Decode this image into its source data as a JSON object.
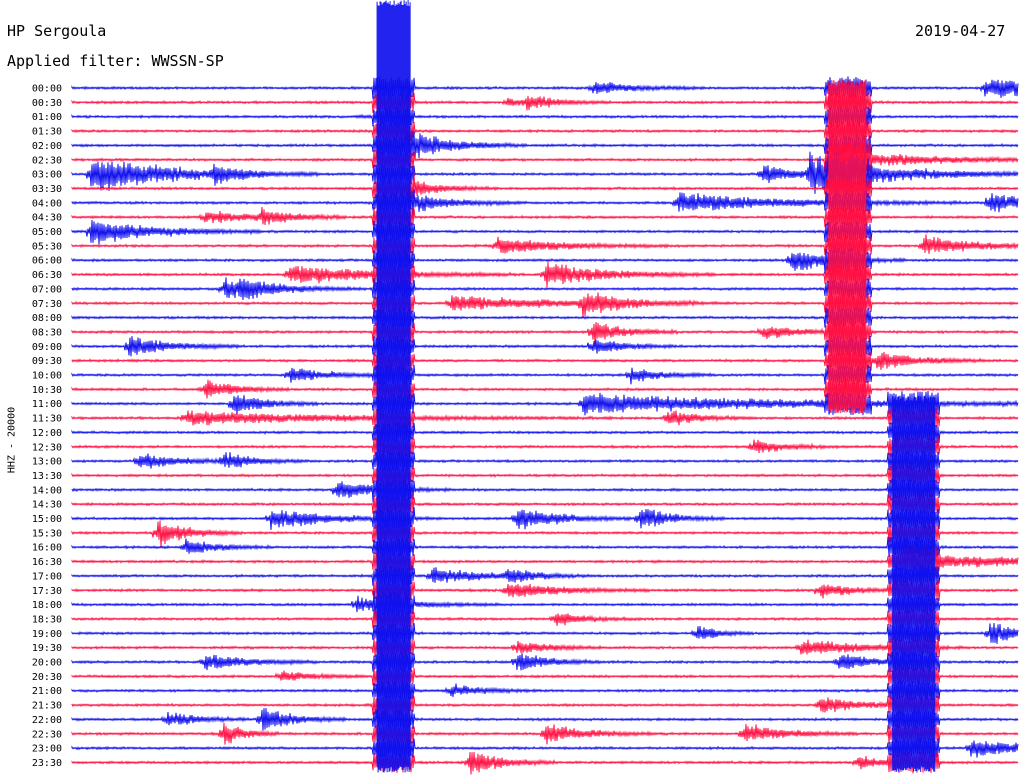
{
  "header": {
    "station": "HP Sergoula",
    "filter": "Applied filter: WWSSN-SP",
    "date": "2019-04-27"
  },
  "channel_label": "HHZ - 20000",
  "colors": {
    "even": "#1010ee",
    "odd": "#ff1144"
  },
  "chart_data": {
    "type": "line",
    "title": "HP Sergoula",
    "subtitle": "Applied filter: WWSSN-SP",
    "date": "2019-04-27",
    "ylabel": "HHZ - 20000",
    "xlabel": "",
    "ytick_labels": [
      "00:00",
      "00:30",
      "01:00",
      "01:30",
      "02:00",
      "02:30",
      "03:00",
      "03:30",
      "04:00",
      "04:30",
      "05:00",
      "05:30",
      "06:00",
      "06:30",
      "07:00",
      "07:30",
      "08:00",
      "08:30",
      "09:00",
      "09:30",
      "10:00",
      "10:30",
      "11:00",
      "11:30",
      "12:00",
      "12:30",
      "13:00",
      "13:30",
      "14:00",
      "14:30",
      "15:00",
      "15:30",
      "16:00",
      "16:30",
      "17:00",
      "17:30",
      "18:00",
      "18:30",
      "19:00",
      "19:30",
      "20:00",
      "20:30",
      "21:00",
      "21:30",
      "22:00",
      "22:30",
      "23:00",
      "23:30"
    ],
    "line_minutes": 30,
    "series_colors": [
      "blue",
      "red"
    ],
    "events": [
      {
        "line": 0,
        "t": 0.965,
        "amp": 12,
        "dur": 0.1,
        "decay": 0.3
      },
      {
        "line": 2,
        "t": 0.3,
        "amp": 0.9,
        "dur": 0.02
      },
      {
        "line": 0,
        "t": 0.55,
        "amp": 8,
        "dur": 0.04
      },
      {
        "line": 1,
        "t": 0.48,
        "amp": 10,
        "dur": 0.03
      },
      {
        "line": 1,
        "t": 0.46,
        "amp": 8,
        "dur": 0.01
      },
      {
        "line": 4,
        "t": 0.36,
        "amp": 16,
        "dur": 0.04
      },
      {
        "line": 5,
        "t": 0.8,
        "amp": 14,
        "dur": 0.08
      },
      {
        "line": 6,
        "t": 0.02,
        "amp": 22,
        "dur": 0.08
      },
      {
        "line": 6,
        "t": 0.78,
        "amp": 22,
        "dur": 0.08,
        "decay": 0.5
      },
      {
        "line": 6,
        "t": 0.73,
        "amp": 12,
        "dur": 0.03
      },
      {
        "line": 6,
        "t": 0.15,
        "amp": 10,
        "dur": 0.02
      },
      {
        "line": 7,
        "t": 0.36,
        "amp": 10,
        "dur": 0.03
      },
      {
        "line": 8,
        "t": 0.36,
        "amp": 11,
        "dur": 0.04
      },
      {
        "line": 8,
        "t": 0.64,
        "amp": 12,
        "dur": 0.1
      },
      {
        "line": 8,
        "t": 0.97,
        "amp": 14,
        "dur": 0.03
      },
      {
        "line": 9,
        "t": 0.14,
        "amp": 7,
        "dur": 0.05
      },
      {
        "line": 9,
        "t": 0.2,
        "amp": 9,
        "dur": 0.03
      },
      {
        "line": 10,
        "t": 0.02,
        "amp": 16,
        "dur": 0.06
      },
      {
        "line": 11,
        "t": 0.45,
        "amp": 10,
        "dur": 0.06
      },
      {
        "line": 11,
        "t": 0.9,
        "amp": 12,
        "dur": 0.05
      },
      {
        "line": 12,
        "t": 0.76,
        "amp": 14,
        "dur": 0.04
      },
      {
        "line": 13,
        "t": 0.23,
        "amp": 12,
        "dur": 0.08
      },
      {
        "line": 13,
        "t": 0.5,
        "amp": 14,
        "dur": 0.06
      },
      {
        "line": 14,
        "t": 0.16,
        "amp": 12,
        "dur": 0.05
      },
      {
        "line": 14,
        "t": 0.18,
        "amp": 10,
        "dur": 0.02
      },
      {
        "line": 15,
        "t": 0.4,
        "amp": 9,
        "dur": 0.1
      },
      {
        "line": 15,
        "t": 0.54,
        "amp": 14,
        "dur": 0.04
      },
      {
        "line": 17,
        "t": 0.55,
        "amp": 14,
        "dur": 0.03
      },
      {
        "line": 17,
        "t": 0.73,
        "amp": 8,
        "dur": 0.04
      },
      {
        "line": 18,
        "t": 0.06,
        "amp": 13,
        "dur": 0.04
      },
      {
        "line": 18,
        "t": 0.55,
        "amp": 10,
        "dur": 0.03
      },
      {
        "line": 19,
        "t": 0.85,
        "amp": 12,
        "dur": 0.04
      },
      {
        "line": 20,
        "t": 0.23,
        "amp": 9,
        "dur": 0.04
      },
      {
        "line": 20,
        "t": 0.59,
        "amp": 10,
        "dur": 0.03
      },
      {
        "line": 21,
        "t": 0.14,
        "amp": 12,
        "dur": 0.03
      },
      {
        "line": 22,
        "t": 0.17,
        "amp": 14,
        "dur": 0.03
      },
      {
        "line": 22,
        "t": 0.54,
        "amp": 12,
        "dur": 0.2
      },
      {
        "line": 23,
        "t": 0.12,
        "amp": 8,
        "dur": 0.15
      },
      {
        "line": 23,
        "t": 0.63,
        "amp": 10,
        "dur": 0.03
      },
      {
        "line": 25,
        "t": 0.72,
        "amp": 9,
        "dur": 0.03
      },
      {
        "line": 26,
        "t": 0.07,
        "amp": 10,
        "dur": 0.04
      },
      {
        "line": 26,
        "t": 0.16,
        "amp": 10,
        "dur": 0.03
      },
      {
        "line": 28,
        "t": 0.28,
        "amp": 12,
        "dur": 0.04
      },
      {
        "line": 30,
        "t": 0.21,
        "amp": 12,
        "dur": 0.06
      },
      {
        "line": 30,
        "t": 0.47,
        "amp": 14,
        "dur": 0.04
      },
      {
        "line": 30,
        "t": 0.6,
        "amp": 14,
        "dur": 0.03
      },
      {
        "line": 31,
        "t": 0.09,
        "amp": 16,
        "dur": 0.03
      },
      {
        "line": 32,
        "t": 0.12,
        "amp": 10,
        "dur": 0.03
      },
      {
        "line": 33,
        "t": 0.88,
        "amp": 10,
        "dur": 0.12
      },
      {
        "line": 34,
        "t": 0.38,
        "amp": 10,
        "dur": 0.05
      },
      {
        "line": 34,
        "t": 0.46,
        "amp": 8,
        "dur": 0.03
      },
      {
        "line": 35,
        "t": 0.46,
        "amp": 10,
        "dur": 0.05
      },
      {
        "line": 35,
        "t": 0.79,
        "amp": 10,
        "dur": 0.03
      },
      {
        "line": 36,
        "t": 0.3,
        "amp": 9,
        "dur": 0.05
      },
      {
        "line": 37,
        "t": 0.51,
        "amp": 8,
        "dur": 0.03
      },
      {
        "line": 38,
        "t": 0.66,
        "amp": 10,
        "dur": 0.02
      },
      {
        "line": 38,
        "t": 0.97,
        "amp": 14,
        "dur": 0.03
      },
      {
        "line": 39,
        "t": 0.47,
        "amp": 10,
        "dur": 0.03
      },
      {
        "line": 39,
        "t": 0.77,
        "amp": 10,
        "dur": 0.06
      },
      {
        "line": 40,
        "t": 0.14,
        "amp": 10,
        "dur": 0.04
      },
      {
        "line": 40,
        "t": 0.47,
        "amp": 12,
        "dur": 0.03
      },
      {
        "line": 40,
        "t": 0.81,
        "amp": 12,
        "dur": 0.03
      },
      {
        "line": 41,
        "t": 0.22,
        "amp": 7,
        "dur": 0.03
      },
      {
        "line": 42,
        "t": 0.4,
        "amp": 8,
        "dur": 0.03
      },
      {
        "line": 43,
        "t": 0.79,
        "amp": 10,
        "dur": 0.04
      },
      {
        "line": 44,
        "t": 0.1,
        "amp": 10,
        "dur": 0.03
      },
      {
        "line": 44,
        "t": 0.2,
        "amp": 16,
        "dur": 0.03
      },
      {
        "line": 45,
        "t": 0.16,
        "amp": 14,
        "dur": 0.02
      },
      {
        "line": 45,
        "t": 0.5,
        "amp": 12,
        "dur": 0.04
      },
      {
        "line": 45,
        "t": 0.71,
        "amp": 12,
        "dur": 0.04
      },
      {
        "line": 46,
        "t": 0.95,
        "amp": 12,
        "dur": 0.05
      },
      {
        "line": 47,
        "t": 0.42,
        "amp": 16,
        "dur": 0.03
      },
      {
        "line": 47,
        "t": 0.83,
        "amp": 8,
        "dur": 0.03
      }
    ],
    "big_quakes": [
      {
        "t": 0.34,
        "from_line": 0,
        "to_line": 47,
        "width": 0.035
      },
      {
        "t": 0.82,
        "from_line": 0,
        "to_line": 22,
        "width": 0.04
      },
      {
        "t": 0.89,
        "from_line": 22,
        "to_line": 47,
        "width": 0.045
      }
    ]
  }
}
